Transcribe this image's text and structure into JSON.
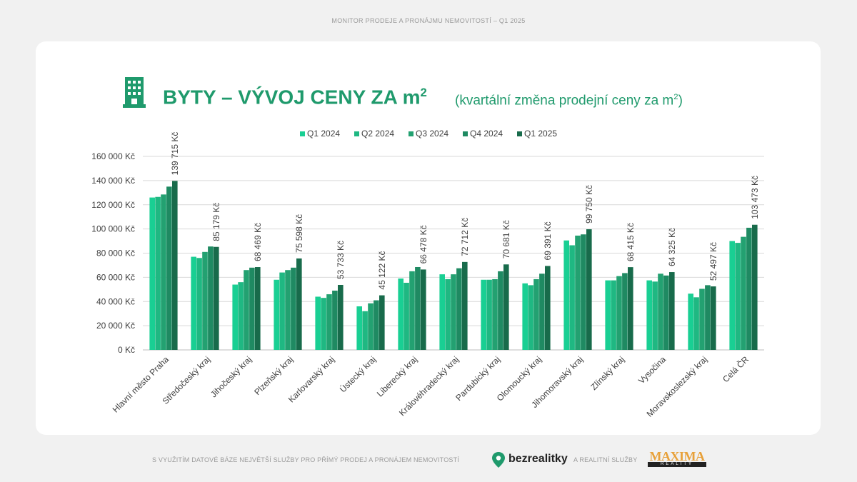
{
  "header": {
    "text": "MONITOR PRODEJE A PRONÁJMU NEMOVITOSTÍ – Q1 2025"
  },
  "title": {
    "main": "BYTY – VÝVOJ CENY ZA m",
    "main_sup": "2",
    "sub": "(kvartální změna prodejní ceny za m",
    "sub_sup": "2",
    "sub_end": ")"
  },
  "icons": {
    "title_icon": "building-icon",
    "footer_icon": "location-pin-icon"
  },
  "footer": {
    "text_left": "S VYUŽITÍM DATOVÉ BÁZE NEJVĚTŠÍ SLUŽBY PRO PŘÍMÝ PRODEJ A PRONÁJEM NEMOVITOSTÍ",
    "brand1": "bezrealitky",
    "text_mid": "A REALITNÍ SLUŽBY",
    "brand2_top": "MAXIMA",
    "brand2_bottom": "REALITY"
  },
  "colors": [
    "#19cf93",
    "#1fb882",
    "#23a171",
    "#1f8a62",
    "#186b4b"
  ],
  "chart_data": {
    "type": "bar",
    "title": "BYTY – VÝVOJ CENY ZA m2",
    "subtitle": "(kvartální změna prodejní ceny za m2)",
    "xlabel": "",
    "ylabel": "",
    "ylim": [
      0,
      160000
    ],
    "yticks": [
      "0 Kč",
      "20 000 Kč",
      "40 000 Kč",
      "60 000 Kč",
      "80 000 Kč",
      "100 000 Kč",
      "120 000 Kč",
      "140 000 Kč",
      "160 000 Kč"
    ],
    "legend_position": "top",
    "grid": true,
    "categories": [
      "Hlavní město Praha",
      "Středočeský kraj",
      "Jihočeský kraj",
      "Plzeňský kraj",
      "Karlovarský kraj",
      "Ústecký kraj",
      "Liberecký kraj",
      "Královéhradecký kraj",
      "Pardubický kraj",
      "Olomoucký kraj",
      "Jihomoravský kraj",
      "Zlínský kraj",
      "Vysočina",
      "Moravskoslezský kraj",
      "Celá ČR"
    ],
    "series": [
      {
        "name": "Q1 2024",
        "values": [
          126000,
          77000,
          54000,
          58000,
          44000,
          36000,
          59000,
          62500,
          58000,
          55000,
          90500,
          57500,
          57500,
          46500,
          90000
        ]
      },
      {
        "name": "Q2 2024",
        "values": [
          126500,
          76000,
          56000,
          64000,
          43000,
          32000,
          55500,
          58500,
          58000,
          53500,
          86500,
          57500,
          56500,
          43500,
          88500
        ]
      },
      {
        "name": "Q3 2024",
        "values": [
          128500,
          81000,
          66000,
          66000,
          46000,
          38500,
          65000,
          62500,
          58500,
          58500,
          94500,
          61000,
          63000,
          50500,
          93500
        ]
      },
      {
        "name": "Q4 2024",
        "values": [
          135000,
          85500,
          68000,
          68000,
          49000,
          41000,
          68500,
          67500,
          65000,
          63000,
          95500,
          63500,
          61500,
          53500,
          101000
        ]
      },
      {
        "name": "Q1 2025",
        "values": [
          139715,
          85179,
          68469,
          75598,
          53733,
          45122,
          66478,
          72712,
          70681,
          69391,
          99750,
          68415,
          64325,
          52497,
          103473
        ]
      }
    ],
    "data_labels": [
      "139 715 Kč",
      "85 179 Kč",
      "68 469 Kč",
      "75 598 Kč",
      "53 733 Kč",
      "45 122 Kč",
      "66 478 Kč",
      "72 712 Kč",
      "70 681 Kč",
      "69 391 Kč",
      "99 750 Kč",
      "68 415 Kč",
      "64 325 Kč",
      "52 497 Kč",
      "103 473 Kč"
    ]
  }
}
